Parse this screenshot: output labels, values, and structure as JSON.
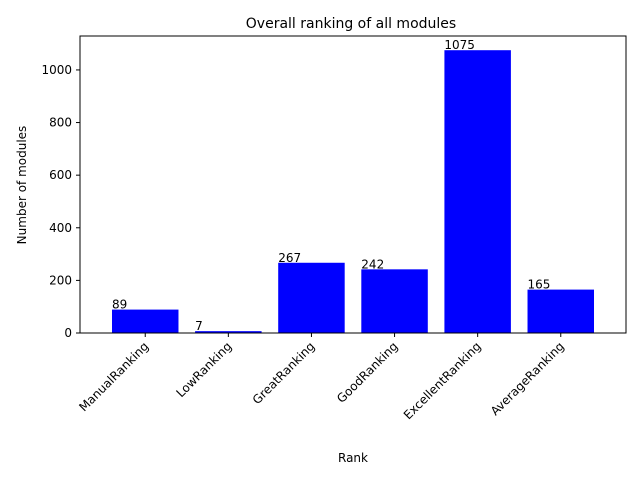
{
  "chart_data": {
    "type": "bar",
    "title": "Overall ranking of all modules",
    "xlabel": "Rank",
    "ylabel": "Number of modules",
    "categories": [
      "ManualRanking",
      "LowRanking",
      "GreatRanking",
      "GoodRanking",
      "ExcellentRanking",
      "AverageRanking"
    ],
    "values": [
      89,
      7,
      267,
      242,
      1075,
      165
    ],
    "data_labels": [
      "89",
      "7",
      "267",
      "242",
      "1075",
      "165"
    ],
    "ylim": [
      0,
      1129
    ],
    "yticks": [
      0,
      200,
      400,
      600,
      800,
      1000
    ],
    "ytick_labels": [
      "0",
      "200",
      "400",
      "600",
      "800",
      "1000"
    ],
    "bar_color": "#0000ff",
    "grid": false,
    "legend": "none",
    "xtick_rotation_deg": 45
  }
}
